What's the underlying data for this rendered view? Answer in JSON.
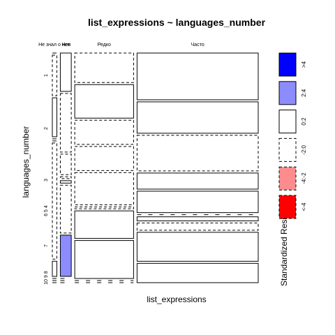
{
  "chart_data": {
    "type": "mosaic",
    "title": "list_expressions ~ languages_number",
    "xlabel": "list_expressions",
    "ylabel": "languages_number",
    "columns": [
      "Не знал о нем",
      "Нет",
      "Редко",
      "Часто"
    ],
    "column_widths": [
      0.023,
      0.056,
      0.301,
      0.62
    ],
    "rows": [
      "1",
      "2",
      "3",
      "4",
      "5",
      "6",
      "7",
      "8",
      "9",
      "10"
    ],
    "row_axis_labels": [
      "1",
      "2",
      "3",
      "6 5 4",
      "7",
      "10 9 8"
    ],
    "row_fractions": [
      [
        0.0,
        0.26,
        0.3,
        0.44
      ],
      [
        0.09,
        0.35,
        0.3,
        0.26
      ],
      [
        0.12,
        0.17,
        0.3,
        0.41
      ],
      [
        0.0,
        0.03,
        0.6,
        0.37
      ],
      [
        0.0,
        0.03,
        0.6,
        0.37
      ],
      [
        0.46,
        0.51,
        0.03,
        0.0
      ],
      [
        0.06,
        0.44,
        0.44,
        0.06
      ],
      [
        0.0,
        0.0,
        0.85,
        0.15
      ],
      [
        0.0,
        0.0,
        0.0,
        1.0
      ],
      [
        0.0,
        0.0,
        0.0,
        1.0
      ]
    ],
    "row_heights": [
      0.22,
      0.25,
      0.18,
      0.09,
      0.12,
      0.14,
      0.14,
      0.1,
      0.06,
      0.04
    ],
    "cell_residual_band": [
      [
        "0:2",
        "0:2",
        "-2:0",
        "0:2"
      ],
      [
        "-2:0",
        "-2:0",
        "0:2",
        "0:2"
      ],
      [
        "0:2",
        "-2:0",
        "-2:0",
        "-2:0"
      ],
      [
        "0:2",
        "-2:0",
        "-2:0",
        "0:2"
      ],
      [
        "-2:0",
        "0:2",
        "-2:0",
        "0:2"
      ],
      [
        "-2:0",
        "-2:0",
        "-2:0",
        "-2:0"
      ],
      [
        "0:2",
        "2:4",
        "0:2",
        "0:2"
      ],
      [
        "-2:0",
        "-2:0",
        "0:2",
        "-2:0"
      ],
      [
        "-2:0",
        "-2:0",
        "-2:0",
        "0:2"
      ],
      [
        "-2:0",
        "-2:0",
        "-2:0",
        "0:2"
      ]
    ],
    "legend": {
      "title": "Standardized Residuals:",
      "placement": "right",
      "entries": [
        {
          "label": ">4",
          "fill": "#0000ff",
          "border": "solid"
        },
        {
          "label": "2:4",
          "fill": "#8c8cff",
          "border": "solid"
        },
        {
          "label": "0:2",
          "fill": "#ffffff",
          "border": "solid"
        },
        {
          "label": "-2:0",
          "fill": "#ffffff",
          "border": "dashed"
        },
        {
          "label": "-4:-2",
          "fill": "#ff8c8c",
          "border": "dashed"
        },
        {
          "label": "<-4",
          "fill": "#ff0000",
          "border": "dashed"
        }
      ]
    }
  }
}
